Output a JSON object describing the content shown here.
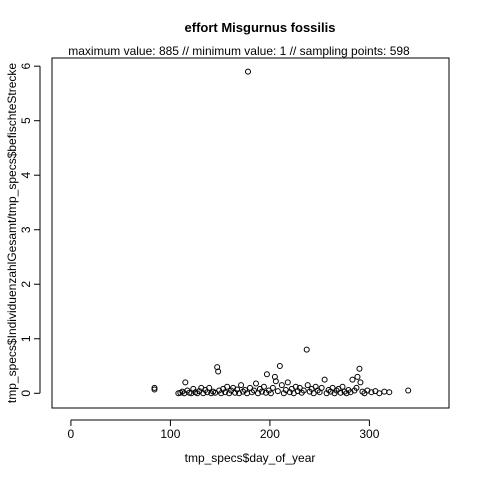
{
  "chart_data": {
    "type": "scatter",
    "title": "effort Misgurnus fossilis",
    "subtitle": "maximum value: 885  //  minimum value: 1  // sampling points: 598",
    "x_label": "tmp_specs$day_of_year",
    "y_label": "tmp_specs$IndividuenzahlGesamt/tmp_specs$befischteStrecke",
    "color": "#000000",
    "xlim": [
      -19,
      380
    ],
    "ylim": [
      -0.27,
      6.15
    ],
    "xticks": [
      0,
      100,
      200,
      300
    ],
    "yticks": [
      0,
      1,
      2,
      3,
      4,
      5,
      6
    ],
    "x": [
      84,
      84,
      108,
      110,
      112,
      114,
      115,
      117,
      119,
      121,
      123,
      125,
      127,
      129,
      131,
      133,
      135,
      137,
      139,
      141,
      143,
      145,
      147,
      148,
      149,
      151,
      153,
      155,
      157,
      159,
      161,
      163,
      165,
      167,
      169,
      171,
      173,
      175,
      177,
      178,
      180,
      182,
      184,
      186,
      188,
      190,
      192,
      194,
      196,
      197,
      199,
      201,
      203,
      205,
      206,
      208,
      210,
      212,
      214,
      216,
      218,
      220,
      222,
      224,
      226,
      228,
      230,
      232,
      234,
      237,
      238,
      240,
      242,
      244,
      246,
      248,
      250,
      252,
      255,
      257,
      259,
      261,
      263,
      265,
      267,
      269,
      271,
      273,
      275,
      277,
      279,
      281,
      283,
      285,
      287,
      288,
      290,
      291,
      293,
      295,
      298,
      302,
      306,
      310,
      315,
      320,
      339
    ],
    "values": [
      0.1,
      0.07,
      0,
      0.01,
      0.03,
      0,
      0.2,
      0.05,
      0.01,
      0,
      0.08,
      0.02,
      0,
      0.04,
      0.1,
      0,
      0.06,
      0.02,
      0.1,
      0,
      0.03,
      0.01,
      0.48,
      0.4,
      0.05,
      0,
      0.08,
      0.02,
      0.12,
      0,
      0.05,
      0.1,
      0.01,
      0.07,
      0,
      0.15,
      0.03,
      0.06,
      0,
      5.9,
      0.1,
      0.02,
      0.05,
      0.18,
      0,
      0.08,
      0.03,
      0.12,
      0.01,
      0.35,
      0.05,
      0,
      0.1,
      0.3,
      0.22,
      0.04,
      0.5,
      0.15,
      0,
      0.06,
      0.2,
      0.02,
      0.08,
      0,
      0.12,
      0.04,
      0.1,
      0.01,
      0.05,
      0.8,
      0.15,
      0.03,
      0.08,
      0,
      0.12,
      0.05,
      0.02,
      0.1,
      0.25,
      0,
      0.06,
      0.03,
      0.1,
      0,
      0.05,
      0.08,
      0.01,
      0.12,
      0.03,
      0,
      0.06,
      0.02,
      0.25,
      0.05,
      0.1,
      0.3,
      0.45,
      0.2,
      0.03,
      0,
      0.05,
      0.02,
      0.04,
      0,
      0.03,
      0.02,
      0.05
    ]
  }
}
